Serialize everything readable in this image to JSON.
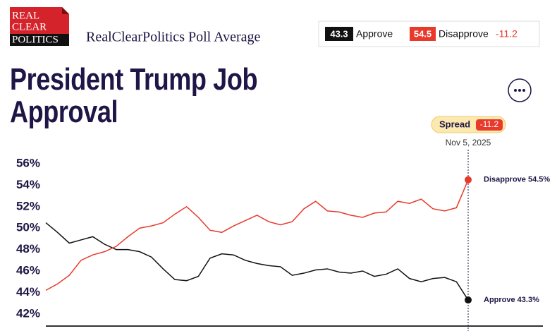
{
  "logo": [
    "REAL",
    "CLEAR",
    "POLITICS"
  ],
  "header": "RealClearPolitics Poll Average",
  "chart_data": {
    "type": "line",
    "title": "President Trump Job Approval",
    "latest": {
      "date": "Nov 5, 2025",
      "spread_label": "Spread",
      "spread": -11.2
    },
    "ylim": [
      41,
      56
    ],
    "yticks": [
      {
        "value": 42,
        "label": "42%"
      },
      {
        "value": 44,
        "label": "44%"
      },
      {
        "value": 46,
        "label": "46%"
      },
      {
        "value": 48,
        "label": "48%"
      },
      {
        "value": 50,
        "label": "50%"
      },
      {
        "value": 52,
        "label": "52%"
      },
      {
        "value": 54,
        "label": "54%"
      },
      {
        "value": 56,
        "label": "56%"
      }
    ],
    "grid": false,
    "series": [
      {
        "name": "Approve",
        "color": "#111111",
        "end_label": "Approve 43.3%",
        "values": [
          50.5,
          49.6,
          48.6,
          48.9,
          49.2,
          48.5,
          48.0,
          48.0,
          47.8,
          47.3,
          46.2,
          45.2,
          45.1,
          45.5,
          47.2,
          47.6,
          47.5,
          47.0,
          46.7,
          46.5,
          46.4,
          45.6,
          45.8,
          46.1,
          46.2,
          45.9,
          45.8,
          46.0,
          45.5,
          45.7,
          46.2,
          45.3,
          45.0,
          45.3,
          45.4,
          45.0,
          43.3
        ]
      },
      {
        "name": "Disapprove",
        "color": "#e8392b",
        "end_label": "Disapprove 54.5%",
        "values": [
          44.2,
          44.8,
          45.6,
          47.0,
          47.5,
          47.8,
          48.3,
          49.2,
          50.0,
          50.2,
          50.5,
          51.3,
          52.0,
          51.0,
          49.8,
          49.6,
          50.2,
          50.7,
          51.2,
          50.6,
          50.3,
          50.6,
          51.8,
          52.5,
          51.6,
          51.5,
          51.2,
          51.0,
          51.4,
          51.5,
          52.5,
          52.3,
          52.7,
          51.8,
          51.6,
          51.9,
          54.5
        ]
      }
    ]
  }
}
